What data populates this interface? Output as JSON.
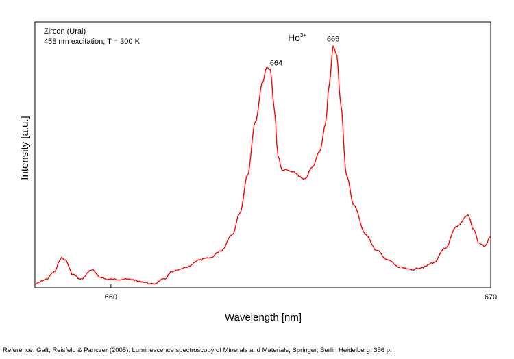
{
  "chart_data": {
    "type": "line",
    "xlabel": "Wavelength [nm]",
    "ylabel": "Intensity [a.u.]",
    "xlim": [
      658,
      670
    ],
    "ylim": [
      0,
      1.0
    ],
    "x_ticks": [
      660,
      670
    ],
    "grid": false,
    "annotation_sample": "Zircon (Ural)",
    "annotation_conditions": "458 nm excitation; T = 300 K",
    "ion_base": "Ho",
    "ion_sup": "3+",
    "peak_labels": [
      {
        "text": "664",
        "x": 664.35,
        "y": 0.93
      },
      {
        "text": "666",
        "x": 665.85,
        "y": 1.03
      }
    ],
    "series": [
      {
        "color": "#ff0000",
        "x": [
          658.0,
          658.3,
          658.5,
          658.7,
          658.8,
          659.0,
          659.2,
          659.5,
          659.7,
          659.9,
          660.2,
          660.5,
          660.8,
          661.1,
          661.4,
          661.6,
          661.8,
          662.0,
          662.3,
          662.6,
          662.9,
          663.2,
          663.4,
          663.6,
          663.8,
          664.0,
          664.1,
          664.2,
          664.3,
          664.4,
          664.5,
          664.6,
          664.8,
          665.1,
          665.3,
          665.5,
          665.65,
          665.75,
          665.85,
          665.95,
          666.05,
          666.2,
          666.4,
          666.7,
          667.0,
          667.3,
          667.6,
          667.9,
          668.2,
          668.5,
          668.8,
          669.1,
          669.4,
          669.55,
          669.7,
          669.85,
          670.0
        ],
        "y": [
          0.01,
          0.03,
          0.06,
          0.12,
          0.11,
          0.05,
          0.03,
          0.07,
          0.04,
          0.03,
          0.03,
          0.03,
          0.02,
          0.01,
          0.03,
          0.06,
          0.07,
          0.08,
          0.11,
          0.12,
          0.15,
          0.22,
          0.31,
          0.47,
          0.69,
          0.86,
          0.92,
          0.91,
          0.75,
          0.55,
          0.49,
          0.49,
          0.48,
          0.45,
          0.5,
          0.57,
          0.68,
          0.85,
          1.01,
          0.97,
          0.77,
          0.47,
          0.34,
          0.22,
          0.15,
          0.11,
          0.08,
          0.07,
          0.08,
          0.1,
          0.16,
          0.25,
          0.3,
          0.24,
          0.18,
          0.17,
          0.21
        ]
      }
    ]
  },
  "reference": "Reference: Gaft, Reisfeld & Panczer (2005): Luminescence spectroscopy of Minerals and Materials, Springer, Berlin Heidelberg, 356 p."
}
